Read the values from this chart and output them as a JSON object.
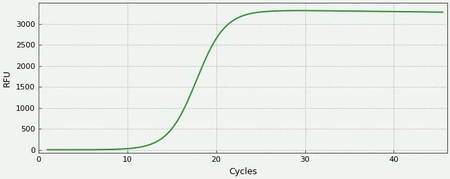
{
  "title": "",
  "xlabel": "Cycles",
  "ylabel": "RFU",
  "line_color": "#2e8b2e",
  "background_color": "#f0f4f0",
  "plot_bg_color": "#f0f4f0",
  "grid_color": "#888888",
  "xlim": [
    0,
    46
  ],
  "ylim": [
    -80,
    3500
  ],
  "xticks": [
    0,
    10,
    20,
    30,
    40
  ],
  "yticks": [
    0,
    500,
    1000,
    1500,
    2000,
    2500,
    3000
  ],
  "sigmoid_L": 3320,
  "sigmoid_k": 0.62,
  "sigmoid_x0": 17.8,
  "plateau_decay_rate": 2.5,
  "plateau_start": 29,
  "x_start": 1,
  "x_end": 45.5,
  "line_width": 1.4,
  "xlabel_fontsize": 9,
  "ylabel_fontsize": 9,
  "tick_fontsize": 8
}
